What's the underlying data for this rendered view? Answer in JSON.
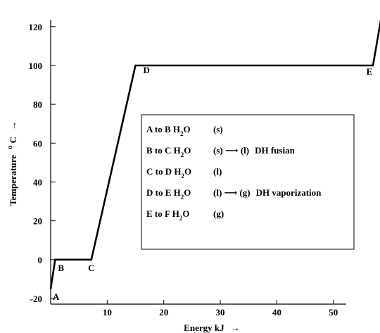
{
  "header_text": "",
  "chart_data": {
    "type": "line",
    "title": "",
    "xlabel": "Energy kJ",
    "xlabel_arrow": "→",
    "ylabel": "Temperature",
    "ylabel_unit_sup": "o",
    "ylabel_unit": "C",
    "ylabel_arrow": "→",
    "xlim": [
      0,
      58
    ],
    "ylim": [
      -20,
      125
    ],
    "x_ticks": [
      10,
      20,
      30,
      40,
      50
    ],
    "y_ticks": [
      -20,
      0,
      20,
      40,
      60,
      80,
      100,
      120
    ],
    "grid": false,
    "series": [
      {
        "points": [
          {
            "x": 0,
            "y": -15
          },
          {
            "x": 0.8,
            "y": 0
          },
          {
            "x": 7.2,
            "y": 0
          },
          {
            "x": 15,
            "y": 100
          },
          {
            "x": 57,
            "y": 100
          },
          {
            "x": 58.5,
            "y": 125
          }
        ]
      }
    ],
    "point_labels": [
      {
        "text": "A",
        "x": 0,
        "y": -15
      },
      {
        "text": "B",
        "x": 0.8,
        "y": 0
      },
      {
        "text": "C",
        "x": 7.2,
        "y": 0
      },
      {
        "text": "D",
        "x": 15,
        "y": 100
      },
      {
        "text": "E",
        "x": 57,
        "y": 100
      }
    ],
    "legend": {
      "placement": "center-right",
      "entries": [
        {
          "pre": "A  to B H",
          "sub": "2",
          "post": "O",
          "phase": "(s)",
          "change": ""
        },
        {
          "pre": "B  to C H",
          "sub": "2",
          "post": "O",
          "phase": "(s) ⟶ (l)",
          "change": "DH fusian"
        },
        {
          "pre": "C  to D H",
          "sub": "2",
          "post": "O",
          "phase": "(l)",
          "change": ""
        },
        {
          "pre": "D  to E H",
          "sub": "2",
          "post": "O",
          "phase": "(l)  ⟶ (g)",
          "change": "DH vaporization"
        },
        {
          "pre": "E  to F H",
          "sub": "2",
          "post": "O",
          "phase": "(g)",
          "change": ""
        }
      ]
    }
  }
}
